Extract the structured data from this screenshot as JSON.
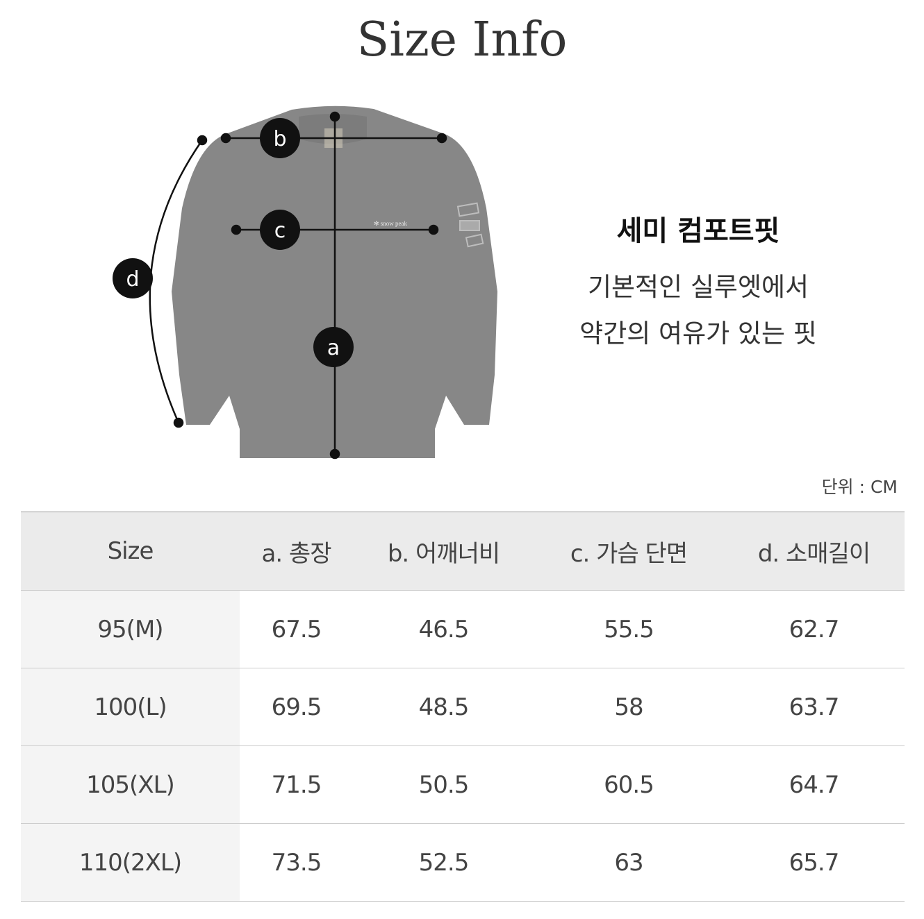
{
  "title": "Size Info",
  "diagram": {
    "labels": [
      "a",
      "b",
      "c",
      "d"
    ],
    "garment_color": "#878787",
    "logo": "snow peak"
  },
  "fit": {
    "name": "세미 컴포트핏",
    "description_line1": "기본적인 실루엣에서",
    "description_line2": "약간의 여유가 있는 핏"
  },
  "unit": "단위 : CM",
  "table": {
    "headers": [
      "Size",
      "a. 총장",
      "b. 어깨너비",
      "c. 가슴 단면",
      "d. 소매길이"
    ],
    "rows": [
      [
        "95(M)",
        "67.5",
        "46.5",
        "55.5",
        "62.7"
      ],
      [
        "100(L)",
        "69.5",
        "48.5",
        "58",
        "63.7"
      ],
      [
        "105(XL)",
        "71.5",
        "50.5",
        "60.5",
        "64.7"
      ],
      [
        "110(2XL)",
        "73.5",
        "52.5",
        "63",
        "65.7"
      ]
    ]
  }
}
